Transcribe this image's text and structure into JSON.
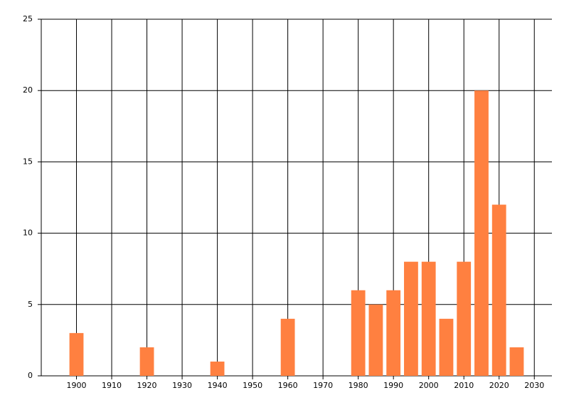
{
  "chart_data": {
    "type": "bar",
    "x": [
      1900,
      1920,
      1940,
      1960,
      1980,
      1985,
      1990,
      1995,
      2000,
      2005,
      2010,
      2015,
      2020,
      2025
    ],
    "values": [
      3,
      2,
      1,
      4,
      6,
      5,
      6,
      8,
      8,
      4,
      8,
      20,
      12,
      2
    ],
    "color": "#ff8040",
    "xlim": [
      1890,
      2035
    ],
    "xticks": [
      1900,
      1910,
      1920,
      1930,
      1940,
      1950,
      1960,
      1970,
      1980,
      1990,
      2000,
      2010,
      2020,
      2030
    ],
    "ylim": [
      0,
      25
    ],
    "yticks": [
      0,
      5,
      10,
      15,
      20,
      25
    ],
    "grid": true
  }
}
